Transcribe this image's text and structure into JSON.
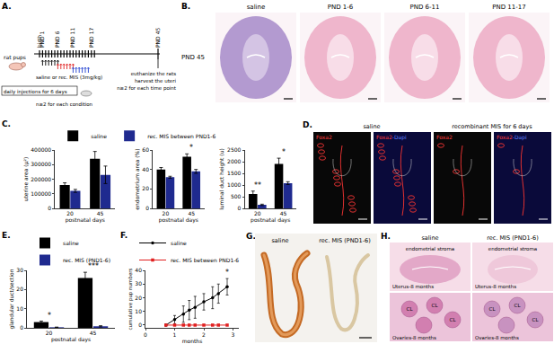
{
  "panels": {
    "A": {
      "label": "A.",
      "pups": "rat pups",
      "timepoints": [
        "birth",
        "PND 1",
        "PND 6",
        "PND 11",
        "PND 17"
      ],
      "end": "PND 45",
      "injections": "daily injections for 6 days",
      "treatment": "saline or rec. MIS (3mg/kg)",
      "n_condition": "n≥2 for each condition",
      "harvest": [
        "euthanize the rats",
        "harvest the uteri",
        "n≥2 for each time point"
      ]
    },
    "B": {
      "label": "B.",
      "row": "PND 45",
      "columns": [
        "saline",
        "PND 1-6",
        "PND 6-11",
        "PND 11-17"
      ]
    },
    "C": {
      "label": "C."
    },
    "D": {
      "label": "D.",
      "groups": [
        "saline",
        "recombinant MIS for 6 days"
      ],
      "stains": [
        "Foxa2",
        "Foxa2-Dapi"
      ]
    },
    "E": {
      "label": "E."
    },
    "F": {
      "label": "F."
    },
    "G": {
      "label": "G.",
      "samples": [
        "saline",
        "rec. MIS (PND1-6)"
      ]
    },
    "H": {
      "label": "H.",
      "columns": [
        "saline",
        "rec. MIS (PND1-6)"
      ],
      "uterus": "Uterus-8 months",
      "ovaries": "Ovaries-8 months",
      "stroma": "endometrial stroma",
      "corpus": "CL"
    }
  },
  "chart_data": [
    {
      "type": "bar",
      "xlabel": "postnatal days",
      "ylabel": "uterine area (µ²)",
      "categories": [
        20,
        45
      ],
      "series": [
        {
          "name": "saline",
          "color": "#000000",
          "values": [
            160000,
            340000
          ],
          "errors": [
            15000,
            50000
          ]
        },
        {
          "name": "rec. MIS between PND1-6",
          "color": "#1f2a8f",
          "values": [
            120000,
            230000
          ],
          "errors": [
            10000,
            60000
          ]
        }
      ],
      "ylim": [
        0,
        400000
      ],
      "yticks": [
        0,
        100000,
        200000,
        300000,
        400000
      ],
      "grid": false,
      "legend": "top"
    },
    {
      "type": "bar",
      "xlabel": "postnatal days",
      "ylabel": "endometrium area (%)",
      "categories": [
        20,
        45
      ],
      "series": [
        {
          "color": "#000000",
          "values": [
            40,
            53
          ],
          "errors": [
            2,
            3
          ]
        },
        {
          "color": "#1f2a8f",
          "values": [
            32,
            38
          ],
          "errors": [
            1,
            2
          ]
        }
      ],
      "ylim": [
        0,
        60
      ],
      "yticks": [
        0,
        20,
        40,
        60
      ],
      "grid": false,
      "annotations": [
        {
          "category": 45,
          "text": "*"
        }
      ]
    },
    {
      "type": "bar",
      "xlabel": "postnatal days",
      "ylabel": "luminal duct height (u)",
      "categories": [
        20,
        45
      ],
      "series": [
        {
          "color": "#000000",
          "values": [
            620,
            1900
          ],
          "errors": [
            120,
            250
          ]
        },
        {
          "color": "#1f2a8f",
          "values": [
            150,
            1080
          ],
          "errors": [
            30,
            60
          ]
        }
      ],
      "ylim": [
        0,
        2500
      ],
      "yticks": [
        0,
        500,
        1000,
        1500,
        2000,
        2500
      ],
      "grid": false,
      "annotations": [
        {
          "category": 20,
          "text": "**"
        },
        {
          "category": 45,
          "text": "*"
        }
      ]
    },
    {
      "type": "bar",
      "xlabel": "postnatal days",
      "ylabel": "glandular duct/section",
      "categories": [
        20,
        45
      ],
      "series": [
        {
          "name": "saline",
          "color": "#000000",
          "values": [
            3,
            26
          ],
          "errors": [
            0.5,
            3
          ]
        },
        {
          "name": "rec. MIS (PND1-6)",
          "color": "#1f2a8f",
          "values": [
            0.3,
            0.8
          ],
          "errors": [
            0.1,
            0.3
          ]
        }
      ],
      "ylim": [
        0,
        30
      ],
      "yticks": [
        0,
        10,
        20,
        30
      ],
      "grid": false,
      "legend": "top",
      "annotations": [
        {
          "category": 20,
          "text": "*"
        },
        {
          "category": 45,
          "text": "***"
        }
      ]
    },
    {
      "type": "line",
      "xlabel": "months",
      "ylabel": "cumulative pup numbers",
      "x": [
        0.7,
        1,
        1.3,
        1.5,
        1.7,
        2,
        2.3,
        2.5,
        2.8
      ],
      "series": [
        {
          "name": "saline",
          "color": "#000000",
          "marker": "circle",
          "values": [
            0,
            4,
            8,
            11,
            13,
            17,
            20,
            23,
            28
          ],
          "errors": [
            0,
            3,
            6,
            7,
            8,
            6,
            8,
            7,
            6
          ]
        },
        {
          "name": "rec. MIS between PND1-6",
          "color": "#e02020",
          "marker": "square",
          "values": [
            0,
            0,
            0,
            0,
            0,
            0,
            0,
            0,
            0
          ]
        }
      ],
      "xlim": [
        0,
        3.2
      ],
      "xticks": [
        0,
        1,
        2,
        3
      ],
      "ylim": [
        -2,
        40
      ],
      "yticks": [
        0,
        10,
        20,
        30,
        40
      ],
      "grid": false,
      "legend": "top",
      "annotations": [
        {
          "x": 2.8,
          "text": "*"
        }
      ]
    }
  ]
}
